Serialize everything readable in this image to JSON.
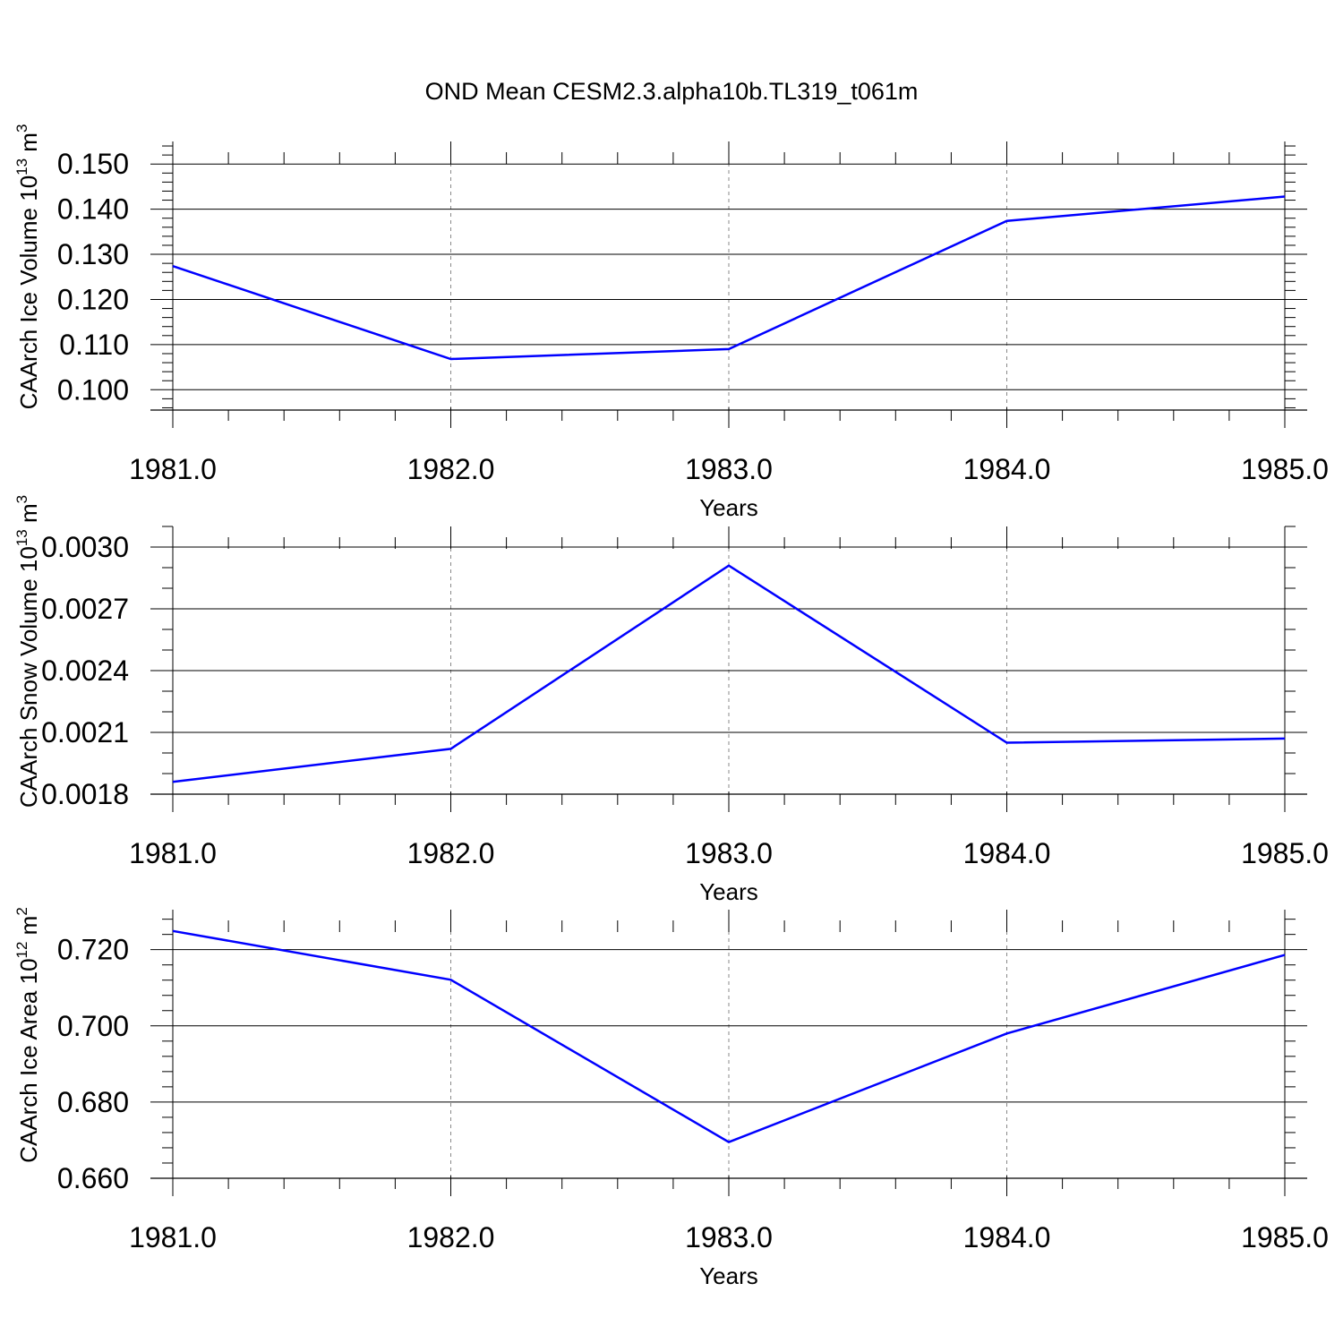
{
  "figure": {
    "title": "OND Mean CESM2.3.alpha10b.TL319_t061m"
  },
  "chart_data": [
    {
      "type": "line",
      "ylabel": "CAArch Ice Volume 10",
      "ylabel_exp": "13",
      "ylabel_unit": " m",
      "ylabel_unit_exp": "3",
      "xlabel": "Years",
      "x": [
        1981,
        1982,
        1983,
        1984,
        1985
      ],
      "xlim": [
        1981,
        1985
      ],
      "x_ticks": [
        1981,
        1982,
        1983,
        1984,
        1985
      ],
      "x_tick_labels": [
        "1981.0",
        "1982.0",
        "1983.0",
        "1984.0",
        "1985.0"
      ],
      "x_minor_step": 0.2,
      "ylim": [
        0.0955,
        0.155
      ],
      "y_ticks": [
        0.1,
        0.11,
        0.12,
        0.13,
        0.14,
        0.15
      ],
      "y_tick_labels": [
        "0.100",
        "0.110",
        "0.120",
        "0.130",
        "0.140",
        "0.150"
      ],
      "y_minor_step": 0.002,
      "series": [
        {
          "values": [
            0.1274,
            0.1068,
            0.109,
            0.1374,
            0.1428
          ]
        }
      ],
      "grid": "vertical dashed at major x ticks",
      "line_color": "#0000ff"
    },
    {
      "type": "line",
      "ylabel": "CAArch Snow Volume 10",
      "ylabel_exp": "13",
      "ylabel_unit": " m",
      "ylabel_unit_exp": "3",
      "xlabel": "Years",
      "x": [
        1981,
        1982,
        1983,
        1984,
        1985
      ],
      "xlim": [
        1981,
        1985
      ],
      "x_ticks": [
        1981,
        1982,
        1983,
        1984,
        1985
      ],
      "x_tick_labels": [
        "1981.0",
        "1982.0",
        "1983.0",
        "1984.0",
        "1985.0"
      ],
      "x_minor_step": 0.2,
      "ylim": [
        0.0018,
        0.0031
      ],
      "y_ticks": [
        0.0018,
        0.0021,
        0.0024,
        0.0027,
        0.003
      ],
      "y_tick_labels": [
        "0.0018",
        "0.0021",
        "0.0024",
        "0.0027",
        "0.0030"
      ],
      "y_minor_step": 0.0001,
      "series": [
        {
          "values": [
            0.00186,
            0.00202,
            0.00291,
            0.00205,
            0.00207
          ]
        }
      ],
      "grid": "vertical dashed at major x ticks",
      "line_color": "#0000ff"
    },
    {
      "type": "line",
      "ylabel": "CAArch Ice Area 10",
      "ylabel_exp": "12",
      "ylabel_unit": " m",
      "ylabel_unit_exp": "2",
      "xlabel": "Years",
      "x": [
        1981,
        1982,
        1983,
        1984,
        1985
      ],
      "xlim": [
        1981,
        1985
      ],
      "x_ticks": [
        1981,
        1982,
        1983,
        1984,
        1985
      ],
      "x_tick_labels": [
        "1981.0",
        "1982.0",
        "1983.0",
        "1984.0",
        "1985.0"
      ],
      "x_minor_step": 0.2,
      "ylim": [
        0.66,
        0.7305
      ],
      "y_ticks": [
        0.66,
        0.68,
        0.7,
        0.72
      ],
      "y_tick_labels": [
        "0.660",
        "0.680",
        "0.700",
        "0.720"
      ],
      "y_minor_step": 0.004,
      "series": [
        {
          "values": [
            0.7249,
            0.7121,
            0.6695,
            0.698,
            0.7186
          ]
        }
      ],
      "grid": "vertical dashed at major x ticks",
      "line_color": "#0000ff"
    }
  ]
}
